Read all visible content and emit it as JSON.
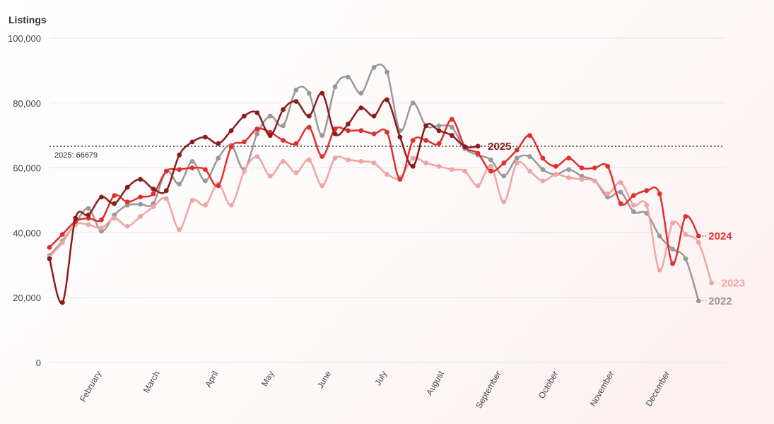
{
  "chart_data": {
    "type": "line",
    "ylabel": "Listings",
    "ylim": [
      0,
      100000
    ],
    "yticks": [
      0,
      20000,
      40000,
      60000,
      80000,
      100000
    ],
    "ytick_labels": [
      "0",
      "20,000",
      "40,000",
      "60,000",
      "80,000",
      "100,000"
    ],
    "x_domain_weeks": [
      1,
      53
    ],
    "months": [
      {
        "label": "February",
        "week": 5
      },
      {
        "label": "March",
        "week": 9.5
      },
      {
        "label": "April",
        "week": 14
      },
      {
        "label": "May",
        "week": 18.3
      },
      {
        "label": "June",
        "week": 22.7
      },
      {
        "label": "July",
        "week": 27
      },
      {
        "label": "August",
        "week": 31.4
      },
      {
        "label": "September",
        "week": 35.8
      },
      {
        "label": "October",
        "week": 40.2
      },
      {
        "label": "November",
        "week": 44.5
      },
      {
        "label": "December",
        "week": 48.8
      }
    ],
    "reference_line": {
      "value": 66679,
      "label": "2025: 66679"
    },
    "series": [
      {
        "name": "2022",
        "color": "#999999",
        "values": [
          33000,
          37500,
          43000,
          47500,
          40500,
          45500,
          48500,
          48800,
          49000,
          59000,
          55000,
          62000,
          56000,
          63000,
          67000,
          59500,
          70500,
          76000,
          73000,
          84000,
          83000,
          70000,
          85000,
          88000,
          83000,
          91000,
          89500,
          71500,
          80000,
          73000,
          73000,
          72500,
          66000,
          64000,
          62500,
          57500,
          63000,
          63500,
          59500,
          58000,
          59500,
          57500,
          56000,
          51000,
          52500,
          46500,
          46000,
          39000,
          35000,
          32000,
          19000
        ]
      },
      {
        "name": "2023",
        "color": "#f2a3a3",
        "values": [
          32500,
          37000,
          42500,
          42500,
          41500,
          44500,
          42000,
          45000,
          48000,
          50500,
          41000,
          50000,
          48500,
          55000,
          48500,
          59000,
          63500,
          57500,
          62000,
          58500,
          62500,
          54500,
          63000,
          62500,
          62000,
          61500,
          58000,
          57000,
          63000,
          61500,
          60500,
          59500,
          59000,
          54500,
          60500,
          49500,
          61500,
          59000,
          56000,
          58000,
          57000,
          56500,
          56000,
          52000,
          55500,
          48500,
          48500,
          28500,
          43000,
          39500,
          37000,
          24500
        ]
      },
      {
        "name": "2024",
        "color": "#e02f2f",
        "values": [
          35500,
          39500,
          43500,
          44500,
          44000,
          51500,
          49500,
          51000,
          52000,
          59000,
          59500,
          60000,
          59500,
          54500,
          66500,
          68000,
          72000,
          71000,
          68500,
          67500,
          72500,
          63500,
          72000,
          71500,
          71500,
          70500,
          71000,
          56500,
          68500,
          68500,
          67500,
          75000,
          66500,
          64500,
          59000,
          61500,
          65500,
          70000,
          63000,
          60500,
          63000,
          60000,
          60000,
          60500,
          49000,
          51500,
          53000,
          52000,
          30500,
          45000,
          39000
        ]
      },
      {
        "name": "2025",
        "color": "#8c1b1b",
        "values": [
          32000,
          18500,
          44500,
          45500,
          51000,
          49000,
          54000,
          56500,
          53500,
          53000,
          64000,
          68000,
          69500,
          67500,
          71500,
          76000,
          77000,
          70000,
          78000,
          80500,
          76000,
          83000,
          70500,
          73500,
          78500,
          76000,
          81000,
          69500,
          60500,
          73000,
          71500,
          70000,
          66500,
          66679
        ]
      }
    ]
  }
}
